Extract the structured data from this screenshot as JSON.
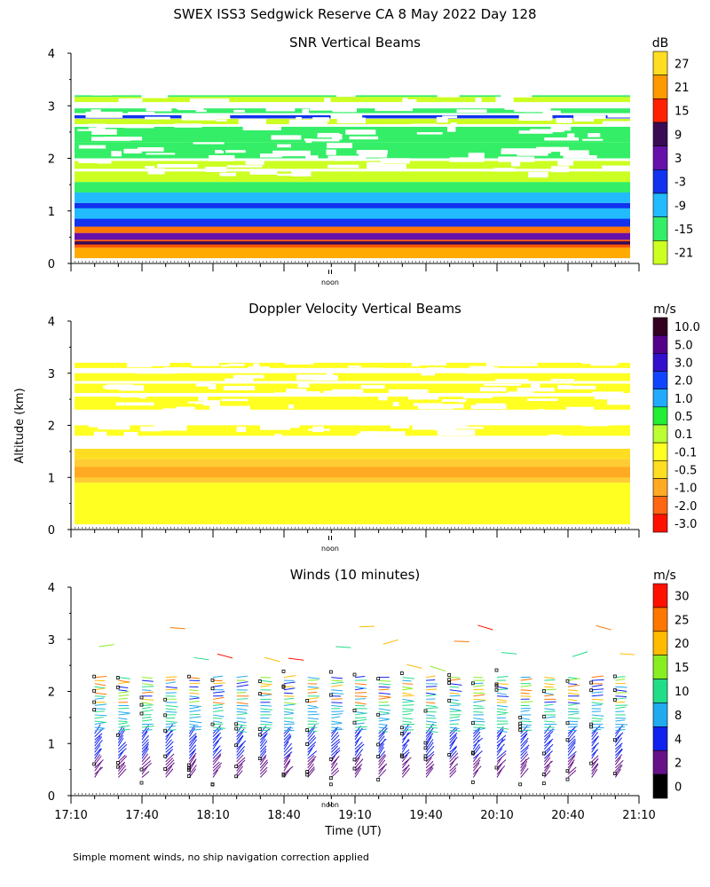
{
  "title": "SWEX ISS3 Sedgwick Reserve CA   8 May 2022 Day 128",
  "ylabel": "Altitude (km)",
  "xlabel": "Time (UT)",
  "footnote": "Simple moment winds, no ship navigation correction applied",
  "noon_label": "noon",
  "chart_data": [
    {
      "type": "heatmap",
      "title": "SNR Vertical Beams",
      "units": "dB",
      "ylim": [
        0,
        4
      ],
      "yticks": [
        "0",
        "1",
        "2",
        "3",
        "4"
      ],
      "colorbar": {
        "labels": [
          "27",
          "21",
          "15",
          "9",
          "3",
          "-3",
          "-9",
          "-15",
          "-21"
        ],
        "colors": [
          "#ffdd22",
          "#ff9900",
          "#ff2200",
          "#3a0a55",
          "#6611aa",
          "#1133ee",
          "#22bbff",
          "#33ee66",
          "#ccff22"
        ]
      },
      "layers": [
        {
          "y0": 0.1,
          "y1": 0.3,
          "color": "#ffaa00"
        },
        {
          "y0": 0.3,
          "y1": 0.45,
          "color": "#ff5500"
        },
        {
          "y0": 0.36,
          "y1": 0.42,
          "color": "#3a0a55"
        },
        {
          "y0": 0.45,
          "y1": 0.58,
          "color": "#6611aa"
        },
        {
          "y0": 0.58,
          "y1": 0.7,
          "color": "#ff7700"
        },
        {
          "y0": 0.7,
          "y1": 1.15,
          "color": "#1133ee"
        },
        {
          "y0": 0.85,
          "y1": 1.05,
          "color": "#22bbff"
        },
        {
          "y0": 1.15,
          "y1": 1.35,
          "color": "#22bbff"
        },
        {
          "y0": 1.35,
          "y1": 1.55,
          "color": "#33ee66"
        },
        {
          "y0": 1.55,
          "y1": 1.75,
          "color": "#ccff22"
        },
        {
          "y0": 1.8,
          "y1": 1.95,
          "color": "#ccff22"
        },
        {
          "y0": 2.0,
          "y1": 2.3,
          "color": "#33ee66"
        },
        {
          "y0": 2.3,
          "y1": 2.6,
          "color": "#33ee66"
        },
        {
          "y0": 2.65,
          "y1": 2.75,
          "color": "#ccff22"
        },
        {
          "y0": 2.76,
          "y1": 2.82,
          "color": "#1133ee"
        },
        {
          "y0": 2.86,
          "y1": 2.95,
          "color": "#33ee66"
        },
        {
          "y0": 3.07,
          "y1": 3.17,
          "color": "#ccff22"
        },
        {
          "y0": 3.17,
          "y1": 3.2,
          "color": "#33ee66"
        }
      ]
    },
    {
      "type": "heatmap",
      "title": "Doppler Velocity Vertical Beams",
      "units": "m/s",
      "ylim": [
        0,
        4
      ],
      "yticks": [
        "0",
        "1",
        "2",
        "3",
        "4"
      ],
      "colorbar": {
        "labels": [
          "10.0",
          "5.0",
          "3.0",
          "2.0",
          "1.0",
          "0.5",
          "0.1",
          "-0.1",
          "-0.5",
          "-1.0",
          "-2.0",
          "-3.0"
        ],
        "colors": [
          "#330022",
          "#550088",
          "#3311cc",
          "#1144ff",
          "#22aaff",
          "#22ee33",
          "#bbff33",
          "#ffff22",
          "#ffdd22",
          "#ffaa22",
          "#ff6611",
          "#ff1100"
        ]
      },
      "layers": [
        {
          "y0": 0.1,
          "y1": 0.9,
          "color": "#ffff22"
        },
        {
          "y0": 0.9,
          "y1": 1.35,
          "color": "#ffcc33"
        },
        {
          "y0": 1.0,
          "y1": 1.2,
          "color": "#ffaa22"
        },
        {
          "y0": 1.35,
          "y1": 1.55,
          "color": "#ffdd22"
        },
        {
          "y0": 1.8,
          "y1": 2.0,
          "color": "#ffff22"
        },
        {
          "y0": 2.3,
          "y1": 2.55,
          "color": "#ffff22"
        },
        {
          "y0": 2.62,
          "y1": 2.8,
          "color": "#ffff22"
        },
        {
          "y0": 2.85,
          "y1": 3.0,
          "color": "#ffff22"
        },
        {
          "y0": 3.1,
          "y1": 3.2,
          "color": "#ffff22"
        }
      ]
    },
    {
      "type": "scatter",
      "title": "Winds (10 minutes)",
      "units": "m/s",
      "ylim": [
        0,
        4
      ],
      "yticks": [
        "0",
        "1",
        "2",
        "3",
        "4"
      ],
      "xticks": [
        "17:10",
        "17:40",
        "18:10",
        "18:40",
        "19:10",
        "19:40",
        "20:10",
        "20:40",
        "21:10"
      ],
      "colorbar": {
        "labels": [
          "30",
          "25",
          "20",
          "15",
          "10",
          "8",
          "4",
          "2",
          "0"
        ],
        "colors": [
          "#ff1100",
          "#ff7700",
          "#ffbb00",
          "#88ee22",
          "#22dd88",
          "#22aaee",
          "#1122ee",
          "#661188",
          "#000000"
        ]
      },
      "profile_times": [
        "17:20",
        "17:30",
        "17:40",
        "17:50",
        "18:00",
        "18:10",
        "18:20",
        "18:30",
        "18:40",
        "18:50",
        "19:00",
        "19:10",
        "19:20",
        "19:30",
        "19:40",
        "19:50",
        "20:00",
        "20:10",
        "20:20",
        "20:30",
        "20:40",
        "20:50",
        "21:00"
      ]
    }
  ]
}
